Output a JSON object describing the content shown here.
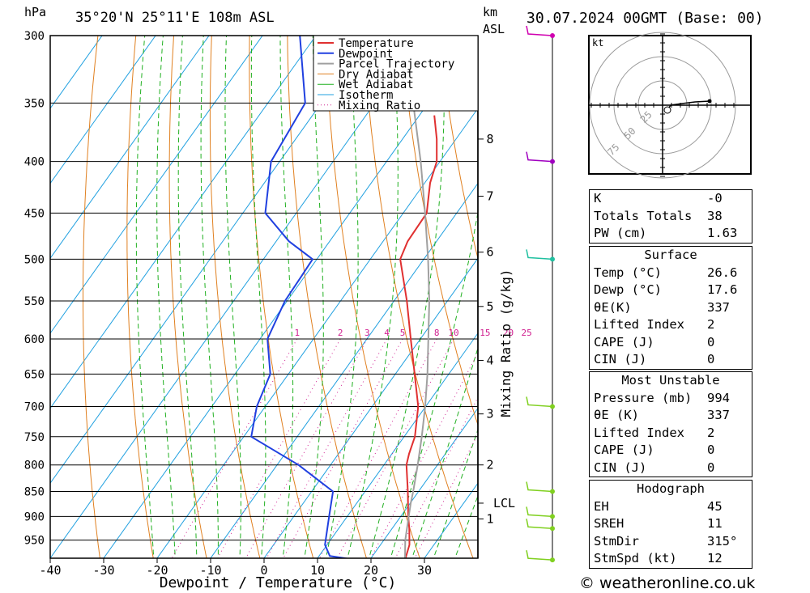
{
  "header": {
    "unit_left": "hPa",
    "location": "35°20'N  25°11'E  108m  ASL",
    "km_label": "km",
    "asl_label": "ASL",
    "timestamp": "30.07.2024  00GMT  (Base: 00)"
  },
  "hodograph": {
    "unit": "kt",
    "rings": [
      "25",
      "50",
      "75"
    ]
  },
  "indices": [
    {
      "k": "K",
      "v": "-0"
    },
    {
      "k": "Totals Totals",
      "v": "38"
    },
    {
      "k": "PW (cm)",
      "v": "1.63"
    }
  ],
  "surface": {
    "title": "Surface",
    "rows": [
      {
        "k": "Temp (°C)",
        "v": "26.6"
      },
      {
        "k": "Dewp (°C)",
        "v": "17.6"
      },
      {
        "k": "θE(K)",
        "v": "337"
      },
      {
        "k": "Lifted Index",
        "v": "2"
      },
      {
        "k": "CAPE (J)",
        "v": "0"
      },
      {
        "k": "CIN (J)",
        "v": "0"
      }
    ]
  },
  "most_unstable": {
    "title": "Most Unstable",
    "rows": [
      {
        "k": "Pressure (mb)",
        "v": "994"
      },
      {
        "k": "θE (K)",
        "v": "337"
      },
      {
        "k": "Lifted Index",
        "v": "2"
      },
      {
        "k": "CAPE (J)",
        "v": "0"
      },
      {
        "k": "CIN (J)",
        "v": "0"
      }
    ]
  },
  "hodograph_table": {
    "title": "Hodograph",
    "rows": [
      {
        "k": "EH",
        "v": "45"
      },
      {
        "k": "SREH",
        "v": "11"
      },
      {
        "k": "StmDir",
        "v": "315°"
      },
      {
        "k": "StmSpd (kt)",
        "v": "12"
      }
    ]
  },
  "footer": "© weatheronline.co.uk",
  "colors": {
    "temperature": "#e03030",
    "dewpoint": "#2040e0",
    "parcel": "#a0a0a0",
    "dry_adiabat": "#e08020",
    "wet_adiabat": "#20b020",
    "isotherm": "#20a0e0",
    "mixing_ratio": "#d02090"
  },
  "chart_data": {
    "type": "line",
    "subtype": "skew-T log-P",
    "xlabel": "Dewpoint / Temperature (°C)",
    "ylabel_left": "hPa",
    "ylabel_right": "Mixing Ratio (g/kg)",
    "xlim": [
      -40,
      40
    ],
    "ylim_hpa": [
      300,
      990
    ],
    "x_ticks": [
      -40,
      -30,
      -20,
      -10,
      0,
      10,
      20,
      30
    ],
    "pressure_levels": [
      300,
      350,
      400,
      450,
      500,
      550,
      600,
      650,
      700,
      750,
      800,
      850,
      900,
      950
    ],
    "km_ticks": [
      {
        "km": "1",
        "p": 905
      },
      {
        "km": "2",
        "p": 800
      },
      {
        "km": "3",
        "p": 712
      },
      {
        "km": "4",
        "p": 630
      },
      {
        "km": "5",
        "p": 557
      },
      {
        "km": "6",
        "p": 492
      },
      {
        "km": "7",
        "p": 433
      },
      {
        "km": "8",
        "p": 380
      }
    ],
    "lcl": {
      "label": "LCL",
      "p": 873
    },
    "mixing_ratio_labels": [
      "1",
      "2",
      "3",
      "4",
      "5",
      "8",
      "10",
      "15",
      "20",
      "25"
    ],
    "mixing_ratio_values": [
      1,
      2,
      3,
      4,
      5,
      8,
      10,
      15,
      20,
      25
    ],
    "legend": [
      "Temperature",
      "Dewpoint",
      "Parcel Trajectory",
      "Dry Adiabat",
      "Wet Adiabat",
      "Isotherm",
      "Mixing Ratio"
    ],
    "series": [
      {
        "name": "Temperature",
        "points": [
          [
            994,
            26.6
          ],
          [
            960,
            25.4
          ],
          [
            925,
            23.2
          ],
          [
            900,
            21.4
          ],
          [
            850,
            18.0
          ],
          [
            800,
            14.2
          ],
          [
            780,
            13.2
          ],
          [
            750,
            12.0
          ],
          [
            700,
            8.6
          ],
          [
            650,
            3.6
          ],
          [
            600,
            -1.8
          ],
          [
            550,
            -7.6
          ],
          [
            500,
            -14.4
          ],
          [
            480,
            -15.4
          ],
          [
            450,
            -15.6
          ],
          [
            420,
            -19.0
          ],
          [
            400,
            -20.6
          ],
          [
            380,
            -23.6
          ],
          [
            360,
            -27.2
          ]
        ]
      },
      {
        "name": "Dewpoint",
        "points": [
          [
            994,
            17.6
          ],
          [
            985,
            12.0
          ],
          [
            960,
            9.6
          ],
          [
            900,
            6.6
          ],
          [
            850,
            4.0
          ],
          [
            800,
            -6.0
          ],
          [
            750,
            -18.6
          ],
          [
            700,
            -21.6
          ],
          [
            650,
            -23.4
          ],
          [
            600,
            -28.6
          ],
          [
            550,
            -30.4
          ],
          [
            520,
            -30.6
          ],
          [
            500,
            -30.8
          ],
          [
            480,
            -37.6
          ],
          [
            450,
            -45.8
          ],
          [
            400,
            -51.6
          ],
          [
            350,
            -53.0
          ],
          [
            300,
            -63.0
          ]
        ]
      },
      {
        "name": "Parcel Trajectory",
        "points": [
          [
            994,
            26.6
          ],
          [
            950,
            24.0
          ],
          [
            900,
            21.5
          ],
          [
            873,
            20.1
          ],
          [
            850,
            19.0
          ],
          [
            800,
            16.3
          ],
          [
            750,
            13.3
          ],
          [
            700,
            9.9
          ],
          [
            650,
            6.0
          ],
          [
            600,
            1.5
          ],
          [
            550,
            -3.4
          ],
          [
            500,
            -9.2
          ],
          [
            450,
            -15.9
          ],
          [
            400,
            -23.6
          ],
          [
            350,
            -32.8
          ],
          [
            300,
            -44.1
          ]
        ]
      }
    ],
    "wind_barbs": [
      {
        "p": 300
      },
      {
        "p": 400
      },
      {
        "p": 500
      },
      {
        "p": 700
      },
      {
        "p": 850
      },
      {
        "p": 900
      },
      {
        "p": 925
      },
      {
        "p": 994
      }
    ]
  }
}
